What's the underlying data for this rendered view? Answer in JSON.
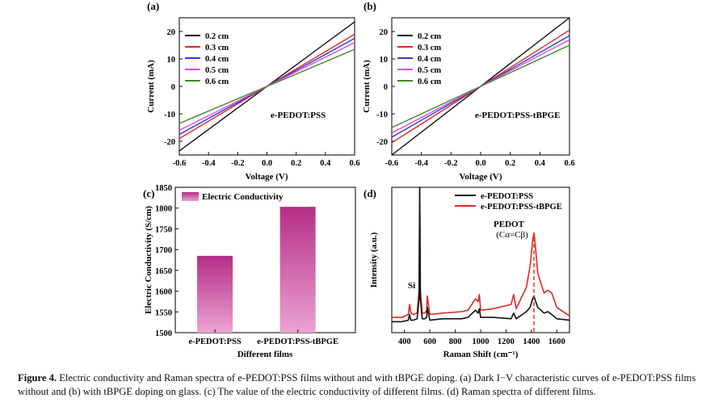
{
  "caption": {
    "label": "Figure 4.",
    "text": "Electric conductivity and Raman spectra of e-PEDOT:PSS films without and with tBPGE doping. (a) Dark I−V characteristic curves of e-PEDOT:PSS films without and (b) with tBPGE doping on glass. (c) The value of the electric conductivity of different films. (d) Raman spectra of different films."
  },
  "colors": {
    "black": "#111111",
    "red": "#e02a1f",
    "blue": "#2b3bd6",
    "magenta": "#e04ce0",
    "green": "#3d8a2a",
    "bar": "#b83d8f",
    "bar_light": "#e49bcb"
  },
  "chart_data": [
    {
      "panel": "(a)",
      "type": "line",
      "annotation": "e-PEDOT:PSS",
      "xlabel": "Voltage (V)",
      "ylabel": "Current (mA)",
      "xlim": [
        -0.6,
        0.6
      ],
      "ylim": [
        -25,
        25
      ],
      "xticks": [
        "-0.6",
        "-0.4",
        "-0.2",
        "0.0",
        "0.2",
        "0.4",
        "0.6"
      ],
      "yticks": [
        "-20",
        "-10",
        "0",
        "10",
        "20"
      ],
      "legend_loc": "top-left",
      "series": [
        {
          "name": "0.2 cm",
          "color": "#111111",
          "x": [
            -0.6,
            0.6
          ],
          "y": [
            -23.5,
            23.5
          ]
        },
        {
          "name": "0.3 cm",
          "color": "#e02a1f",
          "x": [
            -0.6,
            0.6
          ],
          "y": [
            -19.0,
            19.0
          ]
        },
        {
          "name": "0.4 cm",
          "color": "#2b3bd6",
          "x": [
            -0.6,
            0.6
          ],
          "y": [
            -17.5,
            17.5
          ]
        },
        {
          "name": "0.5 cm",
          "color": "#e04ce0",
          "x": [
            -0.6,
            0.6
          ],
          "y": [
            -16.0,
            16.0
          ]
        },
        {
          "name": "0.6 cm",
          "color": "#3d8a2a",
          "x": [
            -0.6,
            0.6
          ],
          "y": [
            -13.5,
            13.5
          ]
        }
      ]
    },
    {
      "panel": "(b)",
      "type": "line",
      "annotation": "e-PEDOT:PSS-tBPGE",
      "xlabel": "Voltage (V)",
      "ylabel": "Current (mA)",
      "xlim": [
        -0.6,
        0.6
      ],
      "ylim": [
        -25,
        25
      ],
      "xticks": [
        "-0.6",
        "-0.4",
        "-0.2",
        "0.0",
        "0.2",
        "0.4",
        "0.6"
      ],
      "yticks": [
        "-20",
        "-10",
        "0",
        "10",
        "20"
      ],
      "legend_loc": "top-left",
      "series": [
        {
          "name": "0.2 cm",
          "color": "#111111",
          "x": [
            -0.6,
            0.6
          ],
          "y": [
            -25.0,
            25.0
          ]
        },
        {
          "name": "0.3 cm",
          "color": "#e02a1f",
          "x": [
            -0.6,
            0.6
          ],
          "y": [
            -20.5,
            20.5
          ]
        },
        {
          "name": "0.4 cm",
          "color": "#2b3bd6",
          "x": [
            -0.6,
            0.6
          ],
          "y": [
            -18.5,
            18.5
          ]
        },
        {
          "name": "0.5 cm",
          "color": "#e04ce0",
          "x": [
            -0.6,
            0.6
          ],
          "y": [
            -17.0,
            17.0
          ]
        },
        {
          "name": "0.6 cm",
          "color": "#3d8a2a",
          "x": [
            -0.6,
            0.6
          ],
          "y": [
            -15.0,
            15.0
          ]
        }
      ]
    },
    {
      "panel": "(c)",
      "type": "bar",
      "xlabel": "Different films",
      "ylabel": "Electric Conductivity (S/cm)",
      "ylim": [
        1500,
        1850
      ],
      "yticks": [
        "1500",
        "1550",
        "1600",
        "1650",
        "1700",
        "1750",
        "1800",
        "1850"
      ],
      "categories": [
        "e-PEDOT:PSS",
        "e-PEDOT:PSS-tBPGE"
      ],
      "values": [
        1685,
        1803
      ],
      "legend": "Electric Conductivity",
      "legend_loc": "top-left"
    },
    {
      "panel": "(d)",
      "type": "line",
      "xlabel": "Raman Shift (cm⁻¹)",
      "ylabel": "Intensity (a.u.)",
      "xlim": [
        300,
        1700
      ],
      "ylim": [
        0,
        100
      ],
      "xticks": [
        "400",
        "600",
        "800",
        "1000",
        "1200",
        "1400",
        "1600"
      ],
      "legend_loc": "top-right",
      "annotations": {
        "si": "Si",
        "pedot": "PEDOT",
        "bond": "(Cα=Cβ)",
        "peak_line_x": 1420
      },
      "series": [
        {
          "name": "e-PEDOT:PSS",
          "color": "#111111",
          "x": [
            300,
            380,
            430,
            440,
            450,
            470,
            500,
            515,
            520,
            525,
            540,
            560,
            575,
            580,
            600,
            700,
            850,
            900,
            960,
            980,
            990,
            1000,
            1100,
            1240,
            1260,
            1280,
            1360,
            1390,
            1410,
            1420,
            1430,
            1450,
            1500,
            1530,
            1560,
            1600,
            1700
          ],
          "y": [
            6,
            6,
            7,
            11,
            7,
            7,
            8,
            22,
            100,
            22,
            8,
            8,
            9,
            16,
            7,
            8,
            8,
            9,
            14,
            12,
            15,
            9,
            9,
            8,
            12,
            8,
            13,
            16,
            22,
            24,
            21,
            16,
            12,
            13,
            11,
            8,
            7
          ]
        },
        {
          "name": "e-PEDOT:PSS-tBPGE",
          "color": "#e02a1f",
          "x": [
            300,
            380,
            430,
            440,
            450,
            470,
            500,
            515,
            520,
            525,
            540,
            560,
            575,
            580,
            600,
            700,
            850,
            900,
            960,
            980,
            990,
            1000,
            1100,
            1240,
            1260,
            1280,
            1360,
            1390,
            1410,
            1420,
            1430,
            1450,
            1500,
            1530,
            1560,
            1600,
            1700
          ],
          "y": [
            9,
            9,
            11,
            18,
            12,
            11,
            12,
            28,
            100,
            28,
            12,
            12,
            14,
            24,
            11,
            12,
            13,
            14,
            22,
            20,
            25,
            14,
            15,
            18,
            25,
            15,
            30,
            45,
            63,
            68,
            60,
            40,
            26,
            28,
            26,
            16,
            10
          ]
        }
      ]
    }
  ]
}
